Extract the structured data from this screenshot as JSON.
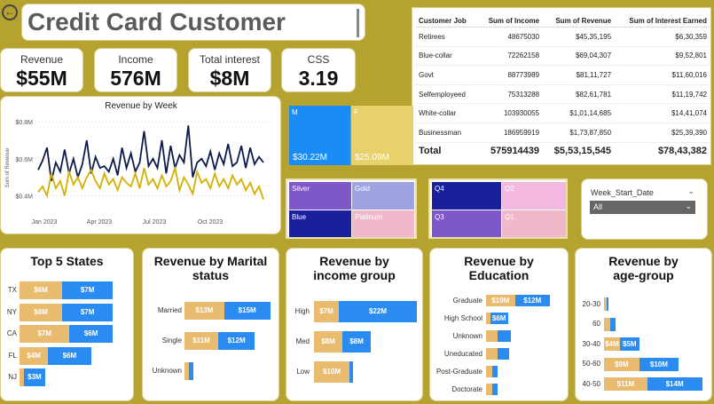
{
  "header": {
    "title": "Credit Card Customer Report"
  },
  "kpis": [
    {
      "label": "Revenue",
      "value": "$55M"
    },
    {
      "label": "Income",
      "value": "576M"
    },
    {
      "label": "Total interest",
      "value": "$8M"
    },
    {
      "label": "CSS",
      "value": "3.19"
    }
  ],
  "jobs_table": {
    "columns": [
      "Customer Job",
      "Sum of Income",
      "Sum of Revenue",
      "Sum of Interest Earned"
    ],
    "rows": [
      [
        "Retirees",
        "48675030",
        "$45,35,195",
        "$6,30,359"
      ],
      [
        "Blue-collar",
        "72262158",
        "$69,04,307",
        "$9,52,801"
      ],
      [
        "Govt",
        "88773989",
        "$81,11,727",
        "$11,60,016"
      ],
      [
        "Selfemployeed",
        "75313288",
        "$82,61,781",
        "$11,19,742"
      ],
      [
        "White-collar",
        "103930055",
        "$1,01,14,685",
        "$14,41,074"
      ],
      [
        "Businessman",
        "186959919",
        "$1,73,87,850",
        "$25,39,390"
      ]
    ],
    "total": [
      "Total",
      "575914439",
      "$5,53,15,545",
      "$78,43,382"
    ]
  },
  "gender_treemap": [
    {
      "label": "M",
      "value": "$30.22M",
      "color": "#1a8cf5"
    },
    {
      "label": "F",
      "value": "$25.09M",
      "color": "#e8d06a"
    }
  ],
  "card_treemap": [
    {
      "label": "Silver",
      "color": "#7e57c8"
    },
    {
      "label": "Gold",
      "color": "#9fa3df"
    },
    {
      "label": "Blue",
      "color": "#1a1f9c"
    },
    {
      "label": "Platinum",
      "color": "#f0b8c8"
    }
  ],
  "quarter_treemap": [
    {
      "label": "Q4",
      "color": "#1a1f9c"
    },
    {
      "label": "Q2",
      "color": "#f2b8e0"
    },
    {
      "label": "Q3",
      "color": "#7e57c8"
    },
    {
      "label": "Q1",
      "color": "#f0b8c8"
    }
  ],
  "slicer": {
    "label": "Week_Start_Date",
    "selected": "All"
  },
  "colors": {
    "female": "#e9bb6e",
    "male": "#2a8cf0",
    "line_dark": "#0d1b4a",
    "line_gold": "#d4b000"
  },
  "chart_data": [
    {
      "type": "line",
      "title": "Revenue by Week",
      "ylabel": "Sum of Revenue",
      "yticks": [
        "$0.4M",
        "$0.6M",
        "$0.8M"
      ],
      "ylim": [
        0.33,
        0.82
      ],
      "xticks": [
        "Jan 2023",
        "Apr 2023",
        "Jul 2023",
        "Oct 2023"
      ],
      "series": [
        {
          "values": [
            0.54,
            0.59,
            0.66,
            0.48,
            0.58,
            0.53,
            0.65,
            0.52,
            0.6,
            0.5,
            0.57,
            0.7,
            0.52,
            0.61,
            0.55,
            0.56,
            0.53,
            0.6,
            0.51,
            0.66,
            0.55,
            0.63,
            0.53,
            0.58,
            0.75,
            0.56,
            0.6,
            0.55,
            0.7,
            0.52,
            0.67,
            0.55,
            0.62,
            0.58,
            0.78,
            0.5,
            0.58,
            0.6,
            0.56,
            0.64,
            0.54,
            0.63,
            0.57,
            0.68,
            0.56,
            0.58,
            0.67,
            0.55,
            0.66,
            0.57,
            0.61,
            0.58
          ]
        },
        {
          "values": [
            0.42,
            0.45,
            0.4,
            0.52,
            0.44,
            0.48,
            0.4,
            0.53,
            0.46,
            0.5,
            0.44,
            0.5,
            0.54,
            0.48,
            0.44,
            0.52,
            0.46,
            0.49,
            0.43,
            0.5,
            0.47,
            0.45,
            0.52,
            0.44,
            0.55,
            0.46,
            0.49,
            0.44,
            0.51,
            0.45,
            0.48,
            0.55,
            0.43,
            0.5,
            0.46,
            0.41,
            0.53,
            0.47,
            0.49,
            0.44,
            0.52,
            0.45,
            0.49,
            0.44,
            0.51,
            0.46,
            0.49,
            0.43,
            0.47,
            0.41,
            0.45,
            0.38
          ]
        }
      ]
    },
    {
      "type": "bar",
      "title": "Top 5 States",
      "categories": [
        "TX",
        "NY",
        "CA",
        "FL",
        "NJ"
      ],
      "series": [
        {
          "values": [
            6,
            6,
            7,
            4,
            0.6
          ],
          "labels": [
            "$6M",
            "$6M",
            "$7M",
            "$4M",
            ""
          ]
        },
        {
          "values": [
            7,
            7,
            6,
            6,
            3
          ],
          "labels": [
            "$7M",
            "$7M",
            "$6M",
            "$6M",
            "$3M"
          ]
        }
      ]
    },
    {
      "type": "bar",
      "title": "Revenue by Marital status",
      "categories": [
        "Married",
        "Single",
        "Unknown"
      ],
      "series": [
        {
          "values": [
            13,
            11,
            1.5
          ],
          "labels": [
            "$13M",
            "$11M",
            ""
          ]
        },
        {
          "values": [
            15,
            12,
            1.5
          ],
          "labels": [
            "$15M",
            "$12M",
            ""
          ]
        }
      ]
    },
    {
      "type": "bar",
      "title": "Revenue by income group",
      "categories": [
        "High",
        "Med",
        "Low"
      ],
      "series": [
        {
          "values": [
            7,
            8,
            10
          ],
          "labels": [
            "$7M",
            "$8M",
            "$10M"
          ]
        },
        {
          "values": [
            22,
            8,
            1
          ],
          "labels": [
            "$22M",
            "$8M",
            ""
          ]
        }
      ]
    },
    {
      "type": "bar",
      "title": "Revenue by Education",
      "categories": [
        "Graduate",
        "High School",
        "Unknown",
        "Uneducated",
        "Post-Graduate",
        "Doctorate"
      ],
      "series": [
        {
          "values": [
            10,
            1.5,
            4,
            4,
            2,
            2
          ],
          "labels": [
            "$10M",
            "",
            "",
            "",
            "",
            ""
          ]
        },
        {
          "values": [
            12,
            6,
            4.5,
            4,
            2,
            2
          ],
          "labels": [
            "$12M",
            "$6M",
            "",
            "",
            "",
            ""
          ]
        }
      ]
    },
    {
      "type": "bar",
      "title": "Revenue by age-group",
      "categories": [
        "20-30",
        "60",
        "30-40",
        "50-60",
        "40-50"
      ],
      "series": [
        {
          "values": [
            0.6,
            1.5,
            4,
            9,
            11
          ],
          "labels": [
            "",
            "",
            "$4M",
            "$9M",
            "$11M"
          ]
        },
        {
          "values": [
            0.6,
            1.5,
            5,
            10,
            14
          ],
          "labels": [
            "",
            "",
            "$5M",
            "$10M",
            "$14M"
          ]
        }
      ]
    }
  ]
}
